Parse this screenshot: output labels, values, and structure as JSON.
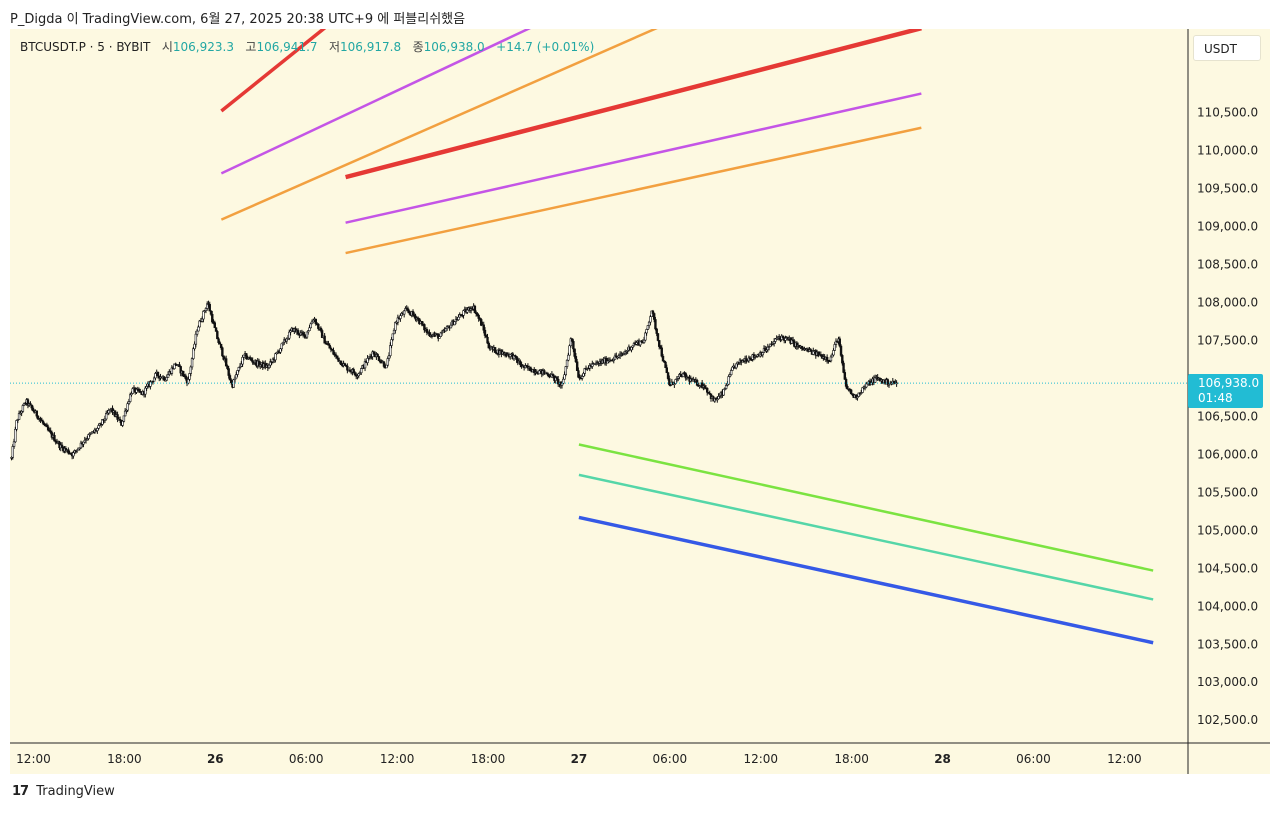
{
  "header": {
    "title": "P_Digda 이 TradingView.com, 6월 27, 2025 20:38 UTC+9 에 퍼블리쉬했음"
  },
  "legend": {
    "symbol": "BTCUSDT.P · 5 · BYBIT",
    "open_label": "시",
    "open": "106,923.3",
    "high_label": "고",
    "high": "106,941.7",
    "low_label": "저",
    "low": "106,917.8",
    "close_label": "종",
    "close": "106,938.0",
    "change": "+14.7 (+0.01%)"
  },
  "price_axis": {
    "unit": "USDT",
    "current_price": "106,938.0",
    "countdown": "01:48"
  },
  "footer": {
    "logo_text": "TradingView",
    "logo_mark": "17"
  },
  "colors": {
    "background": "#fdf9e1",
    "candle": "#111111",
    "price_line": "#22bcd4",
    "red": "#e53935",
    "purple": "#c455e6",
    "orange": "#f2a040",
    "green": "#7be341",
    "teal": "#55d6a8",
    "blue": "#3559e6"
  },
  "chart_data": {
    "type": "candlestick",
    "symbol": "BTCUSDT.P",
    "interval": "5",
    "exchange": "BYBIT",
    "ylim": [
      102200,
      111600
    ],
    "y_ticks": [
      "110,500.0",
      "110,000.0",
      "109,500.0",
      "109,000.0",
      "108,500.0",
      "108,000.0",
      "107,500.0",
      "106,500.0",
      "106,000.0",
      "105,500.0",
      "105,000.0",
      "104,500.0",
      "104,000.0",
      "103,500.0",
      "103,000.0",
      "102,500.0"
    ],
    "x_ticks": [
      {
        "label": "12:00",
        "hours": 0,
        "bold": false
      },
      {
        "label": "18:00",
        "hours": 6,
        "bold": false
      },
      {
        "label": "26",
        "hours": 12,
        "bold": true
      },
      {
        "label": "06:00",
        "hours": 18,
        "bold": false
      },
      {
        "label": "12:00",
        "hours": 24,
        "bold": false
      },
      {
        "label": "18:00",
        "hours": 30,
        "bold": false
      },
      {
        "label": "27",
        "hours": 36,
        "bold": true
      },
      {
        "label": "06:00",
        "hours": 42,
        "bold": false
      },
      {
        "label": "12:00",
        "hours": 48,
        "bold": false
      },
      {
        "label": "18:00",
        "hours": 54,
        "bold": false
      },
      {
        "label": "28",
        "hours": 60,
        "bold": true
      },
      {
        "label": "06:00",
        "hours": 66,
        "bold": false
      },
      {
        "label": "12:00",
        "hours": 72,
        "bold": false
      }
    ],
    "x_range_hours": [
      -1.55,
      76.2
    ],
    "price_path": [
      [
        -1.45,
        105950
      ],
      [
        -1.1,
        106450
      ],
      [
        -0.5,
        106700
      ],
      [
        0.3,
        106500
      ],
      [
        1.0,
        106300
      ],
      [
        1.8,
        106100
      ],
      [
        2.6,
        106000
      ],
      [
        3.4,
        106200
      ],
      [
        4.3,
        106350
      ],
      [
        5.1,
        106600
      ],
      [
        5.8,
        106400
      ],
      [
        6.5,
        106850
      ],
      [
        7.2,
        106800
      ],
      [
        8.1,
        107050
      ],
      [
        8.7,
        107000
      ],
      [
        9.4,
        107200
      ],
      [
        10.2,
        106950
      ],
      [
        10.8,
        107650
      ],
      [
        11.5,
        108000
      ],
      [
        12.1,
        107550
      ],
      [
        12.6,
        107250
      ],
      [
        13.1,
        106900
      ],
      [
        13.9,
        107300
      ],
      [
        14.7,
        107200
      ],
      [
        15.5,
        107150
      ],
      [
        16.3,
        107400
      ],
      [
        17.1,
        107650
      ],
      [
        17.9,
        107550
      ],
      [
        18.5,
        107800
      ],
      [
        19.2,
        107500
      ],
      [
        19.9,
        107300
      ],
      [
        20.6,
        107150
      ],
      [
        21.4,
        107050
      ],
      [
        22.4,
        107350
      ],
      [
        23.3,
        107150
      ],
      [
        23.9,
        107750
      ],
      [
        24.6,
        107900
      ],
      [
        25.3,
        107800
      ],
      [
        26.0,
        107600
      ],
      [
        26.8,
        107550
      ],
      [
        27.5,
        107700
      ],
      [
        28.3,
        107850
      ],
      [
        29.0,
        107950
      ],
      [
        29.6,
        107700
      ],
      [
        30.1,
        107400
      ],
      [
        30.7,
        107350
      ],
      [
        31.6,
        107300
      ],
      [
        32.3,
        107150
      ],
      [
        33.2,
        107100
      ],
      [
        34.1,
        107050
      ],
      [
        34.9,
        106900
      ],
      [
        35.5,
        107550
      ],
      [
        36.0,
        107000
      ],
      [
        36.6,
        107150
      ],
      [
        37.3,
        107200
      ],
      [
        38.0,
        107250
      ],
      [
        38.8,
        107300
      ],
      [
        39.6,
        107450
      ],
      [
        40.3,
        107500
      ],
      [
        40.8,
        107900
      ],
      [
        41.3,
        107450
      ],
      [
        42.0,
        106900
      ],
      [
        42.8,
        107050
      ],
      [
        43.6,
        106950
      ],
      [
        44.3,
        106900
      ],
      [
        44.9,
        106700
      ],
      [
        45.5,
        106800
      ],
      [
        46.2,
        107150
      ],
      [
        46.9,
        107250
      ],
      [
        47.7,
        107300
      ],
      [
        48.5,
        107400
      ],
      [
        49.2,
        107550
      ],
      [
        49.9,
        107500
      ],
      [
        50.6,
        107400
      ],
      [
        51.3,
        107350
      ],
      [
        52.0,
        107300
      ],
      [
        52.6,
        107250
      ],
      [
        53.1,
        107550
      ],
      [
        53.6,
        106900
      ],
      [
        54.2,
        106750
      ],
      [
        54.9,
        106900
      ],
      [
        55.6,
        107000
      ],
      [
        56.3,
        106950
      ],
      [
        57.0,
        106938
      ]
    ],
    "annotations": [
      {
        "name": "red-line-upper",
        "color": "red",
        "width": 3.5,
        "from": {
          "t": 12.4,
          "price": 110520
        },
        "to": {
          "t": 23.5,
          "price": 112300
        }
      },
      {
        "name": "purple-line-upper",
        "color": "purple",
        "width": 2.5,
        "from": {
          "t": 12.4,
          "price": 109700
        },
        "to": {
          "t": 36.9,
          "price": 112000
        }
      },
      {
        "name": "orange-line-upper",
        "color": "orange",
        "width": 2.5,
        "from": {
          "t": 12.4,
          "price": 109090
        },
        "to": {
          "t": 46.7,
          "price": 112100
        }
      },
      {
        "name": "red-line-lower",
        "color": "red",
        "width": 4.5,
        "from": {
          "t": 20.6,
          "price": 109650
        },
        "to": {
          "t": 58.6,
          "price": 111610
        }
      },
      {
        "name": "purple-line-lower",
        "color": "purple",
        "width": 2.5,
        "from": {
          "t": 20.6,
          "price": 109050
        },
        "to": {
          "t": 58.6,
          "price": 110750
        }
      },
      {
        "name": "orange-line-lower",
        "color": "orange",
        "width": 2.5,
        "from": {
          "t": 20.6,
          "price": 108650
        },
        "to": {
          "t": 58.6,
          "price": 110300
        }
      },
      {
        "name": "green-line",
        "color": "green",
        "width": 2.5,
        "from": {
          "t": 36.0,
          "price": 106130
        },
        "to": {
          "t": 73.9,
          "price": 104470
        }
      },
      {
        "name": "teal-line",
        "color": "teal",
        "width": 2.5,
        "from": {
          "t": 36.0,
          "price": 105730
        },
        "to": {
          "t": 73.9,
          "price": 104090
        }
      },
      {
        "name": "blue-line",
        "color": "blue",
        "width": 3.5,
        "from": {
          "t": 36.0,
          "price": 105170
        },
        "to": {
          "t": 73.9,
          "price": 103520
        }
      }
    ]
  }
}
